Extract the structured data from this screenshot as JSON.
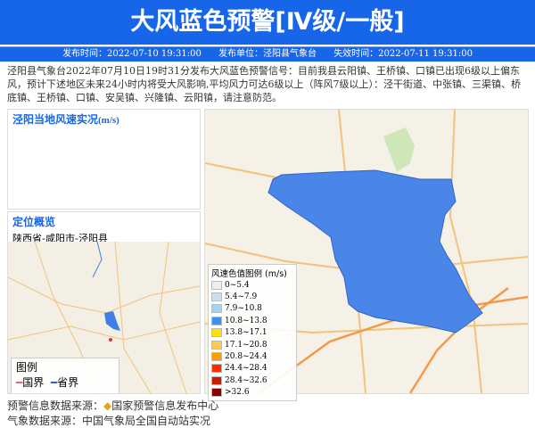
{
  "header": {
    "title": "大风蓝色预警[Ⅳ级/一般]",
    "issue_time": "发布时间：2022-07-10 19:31:00",
    "issuer": "发布单位：泾阳县气象台",
    "expire_time": "失效时间：2022-07-11 19:31:00"
  },
  "description": "泾阳县气象台2022年07月10日19时31分发布大风蓝色预警信号：目前我县云阳镇、王桥镇、口镇已出现6级以上偏东风，预计下述地区未来24小时内将受大风影响,平均风力可达6级以上（阵风7级以上）：泾干街道、中张镇、三渠镇、桥底镇、王桥镇、口镇、安吴镇、兴隆镇、云阳镇，请注意防范。",
  "wind_panel": {
    "title": "泾阳当地风速实况",
    "unit": "(m/s)"
  },
  "location_panel": {
    "title": "定位概览",
    "path": "陕西省-咸阳市-泾阳县",
    "map_legend": {
      "title": "图例",
      "national": "国界",
      "provincial": "省界"
    }
  },
  "wind_legend": {
    "title": "风速色值图例",
    "unit": "(m/s)",
    "items": [
      {
        "label": "0~5.4",
        "color": "#eeeeee"
      },
      {
        "label": "5.4~7.9",
        "color": "#c6dff5"
      },
      {
        "label": "7.9~10.8",
        "color": "#9fd3f7"
      },
      {
        "label": "10.8~13.8",
        "color": "#3f8ff0"
      },
      {
        "label": "13.8~17.1",
        "color": "#ffe000"
      },
      {
        "label": "17.1~20.8",
        "color": "#ffc850"
      },
      {
        "label": "20.8~24.4",
        "color": "#ff9c00"
      },
      {
        "label": "24.4~28.4",
        "color": "#ff2a00"
      },
      {
        "label": "28.4~32.6",
        "color": "#c81e00"
      },
      {
        "label": ">32.6",
        "color": "#8b0000"
      }
    ]
  },
  "footer": {
    "source_label": "预警信息数据来源：",
    "source_name": "国家预警信息发布中心",
    "weather_source": "气象数据来源：中国气象局全国自动站实况"
  },
  "colors": {
    "accent": "#1766ea",
    "county_fill": "#4a86e8"
  }
}
